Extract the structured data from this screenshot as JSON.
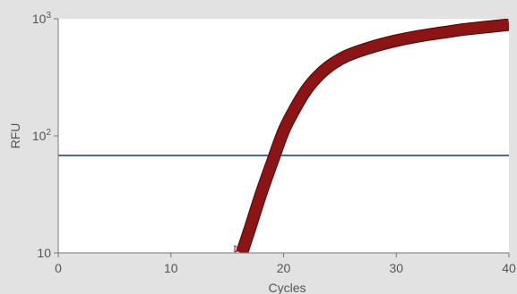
{
  "chart_data": {
    "type": "line",
    "xlabel": "Cycles",
    "ylabel": "RFU",
    "xlim": [
      0,
      40
    ],
    "ylim": [
      10,
      1000
    ],
    "yscale": "log",
    "grid": false,
    "x_ticks": [
      0,
      10,
      20,
      30,
      40
    ],
    "x_tick_labels": [
      "0",
      "10",
      "20",
      "30",
      "40"
    ],
    "y_ticks": [
      10,
      100,
      1000
    ],
    "y_tick_labels": [
      {
        "base": "10",
        "exp": ""
      },
      {
        "base": "10",
        "exp": "2"
      },
      {
        "base": "10",
        "exp": "3"
      }
    ],
    "threshold": {
      "value": 68,
      "color": "#3d5f9c"
    },
    "series": [
      {
        "color": "#8c1414",
        "x": [
          16.3,
          17,
          18,
          19,
          20,
          21,
          22,
          23,
          24,
          25,
          26,
          28,
          30,
          32,
          34,
          36,
          38,
          40
        ],
        "y": [
          10,
          16,
          32,
          60,
          110,
          170,
          245,
          320,
          390,
          450,
          500,
          580,
          650,
          710,
          760,
          810,
          850,
          890
        ]
      }
    ]
  },
  "colors": {
    "background": "#e2e2e2",
    "plot_background": "#ffffff",
    "axis": "#777777",
    "text": "#555555"
  }
}
